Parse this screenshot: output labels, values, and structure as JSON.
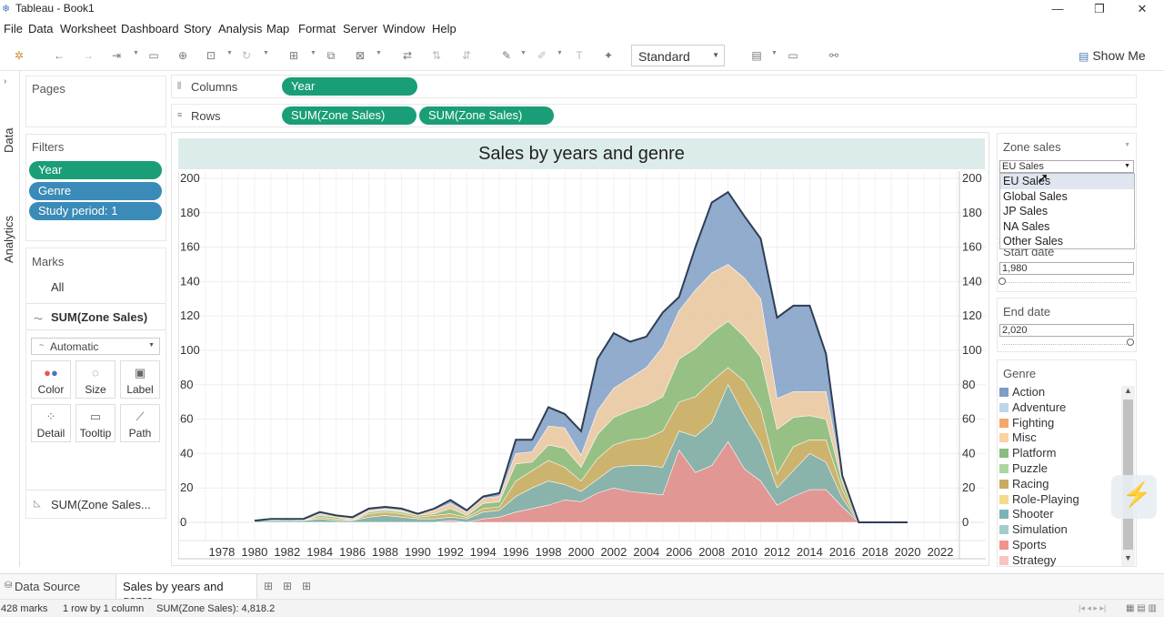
{
  "window": {
    "title": "Tableau - Book1"
  },
  "menu": [
    "File",
    "Data",
    "Worksheet",
    "Dashboard",
    "Story",
    "Analysis",
    "Map",
    "Format",
    "Server",
    "Window",
    "Help"
  ],
  "toolbar": {
    "fit_select": "Standard",
    "show_me": "Show Me"
  },
  "side_tabs": {
    "data": "Data",
    "analytics": "Analytics"
  },
  "pages": {
    "title": "Pages"
  },
  "filters": {
    "title": "Filters",
    "pills": [
      "Year",
      "Genre",
      "Study period: 1"
    ]
  },
  "marks": {
    "title": "Marks",
    "all": "All",
    "measure": "SUM(Zone Sales)",
    "mark_type": "Automatic",
    "buttons": {
      "color": "Color",
      "size": "Size",
      "label": "Label",
      "detail": "Detail",
      "tooltip": "Tooltip",
      "path": "Path"
    },
    "second_measure": "SUM(Zone Sales..."
  },
  "shelves": {
    "columns_label": "Columns",
    "rows_label": "Rows",
    "columns_pill": "Year",
    "rows_pills": [
      "SUM(Zone Sales)",
      "SUM(Zone Sales)"
    ]
  },
  "chart_data": {
    "type": "area",
    "title": "Sales by years and genre",
    "xlabel": "",
    "ylabel": "",
    "x_ticks": [
      "1978",
      "1980",
      "1982",
      "1984",
      "1986",
      "1988",
      "1990",
      "1992",
      "1994",
      "1996",
      "1998",
      "2000",
      "2002",
      "2004",
      "2006",
      "2008",
      "2010",
      "2012",
      "2014",
      "2016",
      "2018",
      "2020",
      "2022"
    ],
    "y_ticks": [
      "0",
      "20",
      "40",
      "60",
      "80",
      "100",
      "120",
      "140",
      "160",
      "180",
      "200"
    ],
    "ylim": [
      0,
      200
    ],
    "x": [
      1980,
      1981,
      1982,
      1983,
      1984,
      1985,
      1986,
      1987,
      1988,
      1989,
      1990,
      1991,
      1992,
      1993,
      1994,
      1995,
      1996,
      1997,
      1998,
      1999,
      2000,
      2001,
      2002,
      2003,
      2004,
      2005,
      2006,
      2007,
      2008,
      2009,
      2010,
      2011,
      2012,
      2013,
      2014,
      2015,
      2016,
      2017,
      2018,
      2019,
      2020
    ],
    "series": [
      {
        "name": "Sports",
        "color": "#f1928e",
        "values": [
          0,
          0,
          0,
          0,
          0,
          0,
          0,
          0,
          0,
          0,
          0,
          0,
          1,
          0,
          2,
          3,
          6,
          8,
          10,
          13,
          12,
          17,
          20,
          18,
          17,
          16,
          42,
          29,
          33,
          47,
          31,
          24,
          10,
          15,
          19,
          19,
          9,
          0,
          0,
          0,
          0
        ]
      },
      {
        "name": "Shooter",
        "color": "#7db3b6",
        "values": [
          1,
          1,
          1,
          1,
          2,
          1,
          1,
          3,
          4,
          3,
          2,
          2,
          3,
          2,
          6,
          7,
          15,
          20,
          24,
          22,
          18,
          25,
          32,
          33,
          33,
          32,
          53,
          50,
          58,
          80,
          62,
          46,
          20,
          30,
          40,
          35,
          14,
          0,
          0,
          0,
          0
        ]
      },
      {
        "name": "Racing",
        "color": "#d6b26a",
        "values": [
          1,
          1,
          1,
          1,
          3,
          2,
          1,
          5,
          6,
          5,
          3,
          4,
          5,
          3,
          8,
          9,
          24,
          30,
          36,
          32,
          24,
          37,
          45,
          48,
          49,
          53,
          70,
          73,
          82,
          90,
          82,
          66,
          28,
          44,
          48,
          48,
          19,
          0,
          0,
          0,
          0
        ]
      },
      {
        "name": "Platform",
        "color": "#88bd7f",
        "values": [
          1,
          1,
          2,
          1,
          4,
          3,
          1,
          6,
          7,
          6,
          4,
          5,
          8,
          4,
          11,
          12,
          34,
          35,
          45,
          43,
          32,
          51,
          61,
          65,
          68,
          73,
          95,
          101,
          110,
          117,
          108,
          96,
          54,
          61,
          62,
          60,
          23,
          0,
          0,
          0,
          0
        ]
      },
      {
        "name": "Misc",
        "color": "#fbd2a3",
        "values": [
          1,
          2,
          2,
          2,
          5,
          4,
          2,
          7,
          8,
          7,
          5,
          7,
          11,
          6,
          14,
          15,
          40,
          41,
          56,
          55,
          39,
          65,
          78,
          84,
          90,
          102,
          123,
          135,
          145,
          150,
          142,
          130,
          72,
          76,
          76,
          76,
          26,
          0,
          0,
          0,
          0
        ]
      },
      {
        "name": "Action",
        "color": "#7e9ec4",
        "values": [
          1,
          2,
          2,
          2,
          6,
          4,
          3,
          8,
          9,
          8,
          5,
          8,
          13,
          7,
          15,
          17,
          48,
          48,
          67,
          63,
          53,
          95,
          110,
          105,
          108,
          122,
          131,
          160,
          186,
          192,
          178,
          165,
          119,
          126,
          126,
          98,
          27,
          0,
          0,
          0,
          0
        ]
      }
    ]
  },
  "right": {
    "zone_title": "Zone sales",
    "zone_value": "EU Sales",
    "zone_options": [
      "EU Sales",
      "Global Sales",
      "JP Sales",
      "NA Sales",
      "Other Sales"
    ],
    "start_date_title": "Start date",
    "start_date_value": "1,980",
    "end_date_title": "End date",
    "end_date_value": "2,020",
    "genre_title": "Genre",
    "genres": [
      {
        "name": "Action",
        "color": "#7e9ec4"
      },
      {
        "name": "Adventure",
        "color": "#bcd6ec"
      },
      {
        "name": "Fighting",
        "color": "#f3a76a"
      },
      {
        "name": "Misc",
        "color": "#fbd2a3"
      },
      {
        "name": "Platform",
        "color": "#88bd7f"
      },
      {
        "name": "Puzzle",
        "color": "#a9d89c"
      },
      {
        "name": "Racing",
        "color": "#c9a965"
      },
      {
        "name": "Role-Playing",
        "color": "#f5d98c"
      },
      {
        "name": "Shooter",
        "color": "#7db3b6"
      },
      {
        "name": "Simulation",
        "color": "#a3cdcb"
      },
      {
        "name": "Sports",
        "color": "#f1928e"
      },
      {
        "name": "Strategy",
        "color": "#f7c4c0"
      }
    ]
  },
  "bottom": {
    "data_source_tab": "Data Source",
    "sheet_tab": "Sales by years and genre",
    "status_marks": "428 marks",
    "status_rows": "1 row by 1 column",
    "status_sum": "SUM(Zone Sales): 4,818.2"
  }
}
